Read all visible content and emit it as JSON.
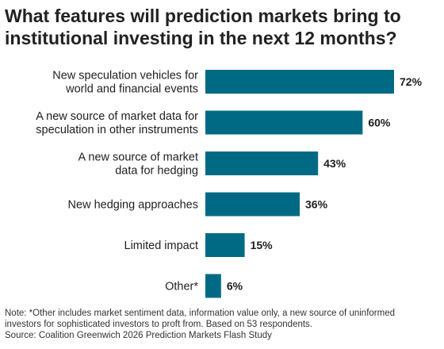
{
  "title": "What features will prediction markets bring to institutional investing in the next 12 months?",
  "chart_data": {
    "type": "bar",
    "orientation": "horizontal",
    "categories": [
      "New speculation vehicles for world and financial events",
      "A new source of market data for speculation in other instruments",
      "A new source of market data for hedging",
      "New hedging approaches",
      "Limited impact",
      "Other*"
    ],
    "category_lines": [
      [
        "New speculation vehicles for",
        "world and financial events"
      ],
      [
        "A new source of market data for",
        "speculation in other instruments"
      ],
      [
        "A new source of market",
        "data for hedging"
      ],
      [
        "New hedging approaches"
      ],
      [
        "Limited impact"
      ],
      [
        "Other*"
      ]
    ],
    "values": [
      72,
      60,
      43,
      36,
      15,
      6
    ],
    "value_labels": [
      "72%",
      "60%",
      "43%",
      "36%",
      "15%",
      "6%"
    ],
    "unit": "%",
    "bar_color": "#006a85",
    "grid": false,
    "xaxis_visible": false
  },
  "footnotes": {
    "note_line1": "Note: *Other includes market sentiment data, information value only, a new source of uninformed",
    "note_line2": "investors for sophisticated investors to proft from. Based on 53 respondents.",
    "source": "Source: Coalition Greenwich 2026 Prediction Markets Flash Study"
  }
}
